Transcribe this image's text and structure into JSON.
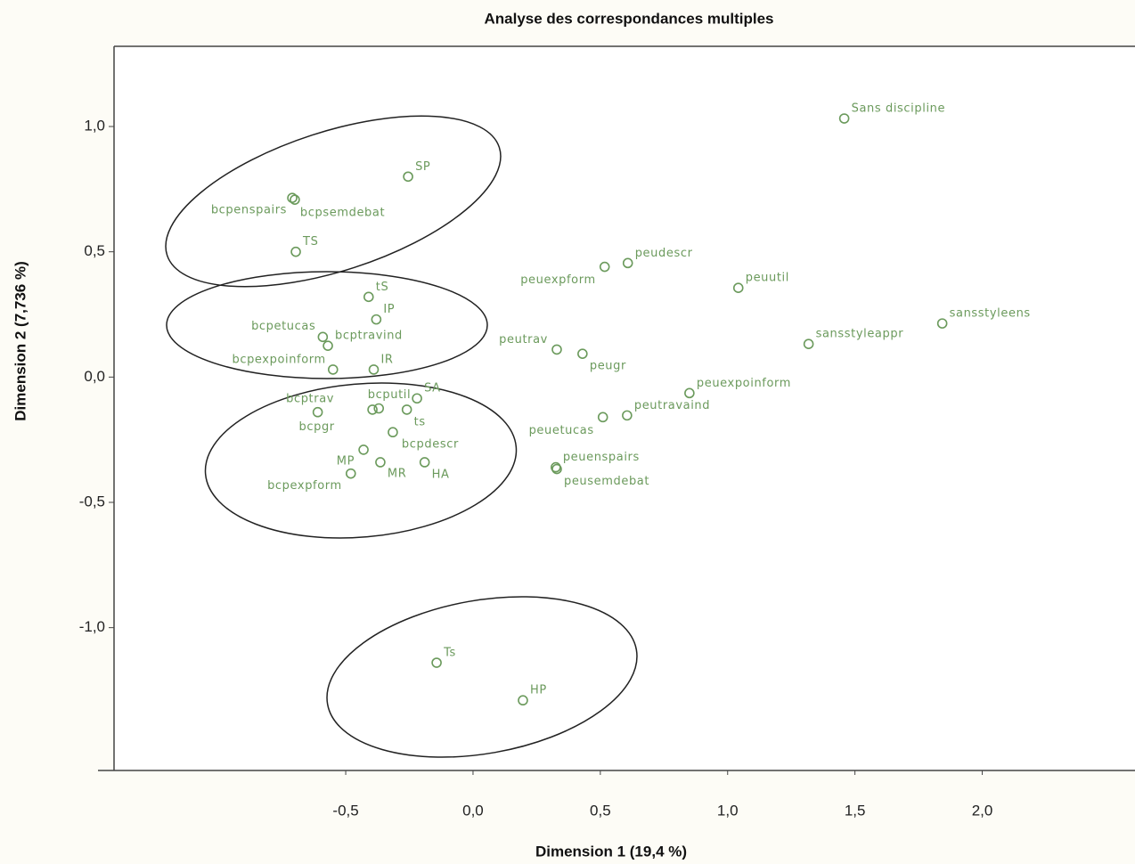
{
  "chart_data": {
    "type": "scatter",
    "title": "Analyse des correspondances multiples",
    "x_label": "Dimension 1 (19,4 %)",
    "y_label": "Dimension 2 (7,736 %)",
    "color": "#6b9a5c",
    "xlim": [
      -1.41,
      2.6
    ],
    "ylim": [
      -1.57,
      1.32
    ],
    "xticks": [
      {
        "value": -0.5,
        "label": "-0,5"
      },
      {
        "value": 0,
        "label": "0,0"
      },
      {
        "value": 0.5,
        "label": "0,5"
      },
      {
        "value": 1,
        "label": "1,0"
      },
      {
        "value": 1.5,
        "label": "1,5"
      },
      {
        "value": 2,
        "label": "2,0"
      }
    ],
    "yticks": [
      {
        "value": 1,
        "label": "1,0"
      },
      {
        "value": 0.5,
        "label": "0,5"
      },
      {
        "value": 0,
        "label": "0,0"
      },
      {
        "value": -0.5,
        "label": "-0,5"
      },
      {
        "value": -1,
        "label": "-1,0"
      }
    ],
    "labels": [
      "Sans discipline",
      "SP",
      "bcpenspairs",
      "bcpsemdebat",
      "TS",
      "tS",
      "IP",
      "bcpetucas",
      "bcptravind",
      "bcpexpoinform",
      "IR",
      "SA",
      "bcputil",
      "bcptrav",
      "bcpgr",
      "ts",
      "bcpdescr",
      "MP",
      "MR",
      "HA",
      "bcpexpform",
      "Ts",
      "HP",
      "peuexpform",
      "peudescr",
      "peuutil",
      "sansstyleens",
      "sansstyleappr",
      "peutrav",
      "peugr",
      "peuexpoinform",
      "peutravaind",
      "peuetucas",
      "peuenspairs",
      "peusemdebat"
    ],
    "x": [
      1.458,
      -0.255,
      -0.71,
      -0.7,
      -0.696,
      -0.41,
      -0.38,
      -0.59,
      -0.57,
      -0.55,
      -0.39,
      -0.22,
      -0.37,
      -0.395,
      -0.61,
      -0.26,
      -0.315,
      -0.43,
      -0.364,
      -0.19,
      -0.48,
      -0.143,
      0.196,
      0.517,
      0.608,
      1.042,
      1.843,
      1.318,
      0.329,
      0.43,
      0.85,
      0.605,
      0.51,
      0.325,
      0.329
    ],
    "y": [
      1.032,
      0.8,
      0.715,
      0.708,
      0.5,
      0.32,
      0.23,
      0.16,
      0.125,
      0.03,
      0.03,
      -0.085,
      -0.125,
      -0.13,
      -0.14,
      -0.13,
      -0.22,
      -0.29,
      -0.34,
      -0.34,
      -0.385,
      -1.14,
      -1.29,
      0.44,
      0.455,
      0.356,
      0.214,
      0.132,
      0.11,
      0.093,
      -0.064,
      -0.153,
      -0.16,
      -0.36,
      -0.367
    ]
  }
}
